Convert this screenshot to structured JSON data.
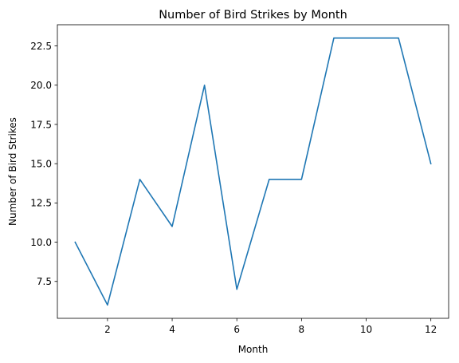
{
  "chart_data": {
    "type": "line",
    "title": "Number of Bird Strikes by Month",
    "xlabel": "Month",
    "ylabel": "Number of Bird Strikes",
    "x": [
      1,
      2,
      3,
      4,
      5,
      6,
      7,
      8,
      9,
      10,
      11,
      12
    ],
    "series": [
      {
        "values": [
          10,
          6,
          14,
          11,
          20,
          7,
          14,
          14,
          23,
          23,
          23,
          15
        ],
        "color": "#1f77b4"
      }
    ],
    "xlim": [
      0.45,
      12.55
    ],
    "ylim": [
      5.15,
      23.85
    ],
    "xticks": [
      2,
      4,
      6,
      8,
      10,
      12
    ],
    "xtick_labels": [
      "2",
      "4",
      "6",
      "8",
      "10",
      "12"
    ],
    "yticks": [
      7.5,
      10.0,
      12.5,
      15.0,
      17.5,
      20.0,
      22.5
    ],
    "ytick_labels": [
      "7.5",
      "10.0",
      "12.5",
      "15.0",
      "17.5",
      "20.0",
      "22.5"
    ],
    "grid": false,
    "legend": "none"
  }
}
